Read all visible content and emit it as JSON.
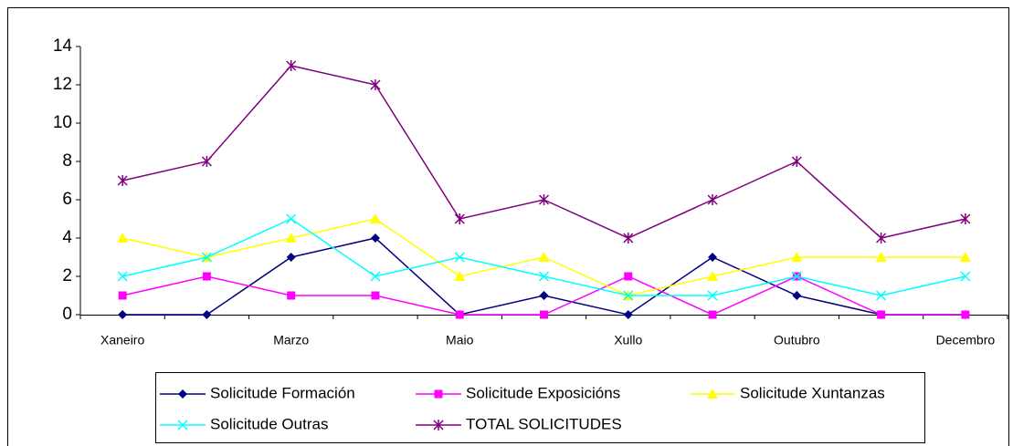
{
  "chart_data": {
    "type": "line",
    "categories": [
      "Xaneiro",
      null,
      "Marzo",
      null,
      "Maio",
      null,
      "Xullo",
      null,
      "Outubro",
      null,
      "Decembro"
    ],
    "series": [
      {
        "name": "Solicitude Formación",
        "color": "#000080",
        "marker": "diamond",
        "values": [
          0,
          0,
          3,
          4,
          0,
          1,
          0,
          3,
          1,
          0,
          0
        ]
      },
      {
        "name": "Solicitude Exposicións",
        "color": "#ff00ff",
        "marker": "square",
        "values": [
          1,
          2,
          1,
          1,
          0,
          0,
          2,
          0,
          2,
          0,
          0
        ]
      },
      {
        "name": "Solicitude Xuntanzas",
        "color": "#ffff00",
        "marker": "triangle",
        "values": [
          4,
          3,
          4,
          5,
          2,
          3,
          1,
          2,
          3,
          3,
          3
        ]
      },
      {
        "name": "Solicitude Outras",
        "color": "#00ffff",
        "marker": "x",
        "values": [
          2,
          3,
          5,
          2,
          3,
          2,
          1,
          1,
          2,
          1,
          2
        ]
      },
      {
        "name": "TOTAL SOLICITUDES",
        "color": "#800080",
        "marker": "star",
        "values": [
          7,
          8,
          13,
          12,
          5,
          6,
          4,
          6,
          8,
          4,
          5
        ]
      }
    ],
    "ylim": [
      0,
      14
    ],
    "yticks": [
      0,
      2,
      4,
      6,
      8,
      10,
      12,
      14
    ],
    "legend": "bottom"
  }
}
